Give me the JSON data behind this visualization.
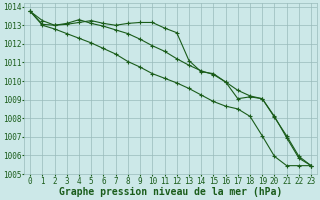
{
  "background_color": "#cce8e8",
  "grid_color": "#99bbbb",
  "line_color": "#1a5c1a",
  "xlabel": "Graphe pression niveau de la mer (hPa)",
  "xlabel_fontsize": 7,
  "tick_fontsize": 5.5,
  "xlim": [
    -0.5,
    23.5
  ],
  "ylim": [
    1005,
    1014.2
  ],
  "yticks": [
    1005,
    1006,
    1007,
    1008,
    1009,
    1010,
    1011,
    1012,
    1013,
    1014
  ],
  "xticks": [
    0,
    1,
    2,
    3,
    4,
    5,
    6,
    7,
    8,
    9,
    10,
    11,
    12,
    13,
    14,
    15,
    16,
    17,
    18,
    19,
    20,
    21,
    22,
    23
  ],
  "series1_x": [
    0,
    1,
    2,
    3,
    4,
    5,
    6,
    7,
    8,
    9,
    10,
    11,
    12,
    13,
    14,
    15,
    16,
    17,
    18,
    19,
    20,
    21,
    22,
    23
  ],
  "series1_y": [
    1013.75,
    1013.25,
    1013.0,
    1013.05,
    1013.15,
    1013.25,
    1013.1,
    1013.0,
    1013.1,
    1013.15,
    1013.15,
    1012.85,
    1012.6,
    1011.1,
    1010.5,
    1010.4,
    1009.95,
    1009.05,
    1009.15,
    1009.05,
    1008.1,
    1006.95,
    1005.85,
    1005.45
  ],
  "series2_x": [
    0,
    1,
    2,
    3,
    4,
    5,
    6,
    7,
    8,
    9,
    10,
    11,
    12,
    13,
    14,
    15,
    16,
    17,
    18,
    19,
    20,
    21,
    22,
    23
  ],
  "series2_y": [
    1013.75,
    1013.05,
    1013.0,
    1013.1,
    1013.3,
    1013.1,
    1012.95,
    1012.75,
    1012.55,
    1012.25,
    1011.9,
    1011.6,
    1011.2,
    1010.85,
    1010.55,
    1010.35,
    1009.95,
    1009.5,
    1009.2,
    1009.05,
    1008.05,
    1007.05,
    1005.95,
    1005.45
  ],
  "series3_x": [
    0,
    1,
    2,
    3,
    4,
    5,
    6,
    7,
    8,
    9,
    10,
    11,
    12,
    13,
    14,
    15,
    16,
    17,
    18,
    19,
    20,
    21,
    22,
    23
  ],
  "series3_y": [
    1013.75,
    1013.0,
    1012.8,
    1012.55,
    1012.3,
    1012.05,
    1011.75,
    1011.45,
    1011.05,
    1010.75,
    1010.4,
    1010.15,
    1009.9,
    1009.6,
    1009.25,
    1008.9,
    1008.65,
    1008.5,
    1008.1,
    1007.05,
    1005.95,
    1005.45,
    1005.45,
    1005.45
  ]
}
